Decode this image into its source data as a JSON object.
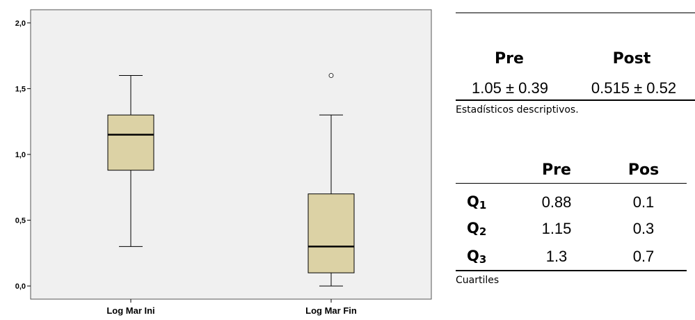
{
  "chart_data": {
    "type": "boxplot",
    "categories": [
      "Log Mar Ini",
      "Log Mar Fin"
    ],
    "boxes": [
      {
        "category": "Log Mar Ini",
        "min": 0.3,
        "q1": 0.88,
        "median": 1.15,
        "q3": 1.3,
        "max": 1.6,
        "outliers": []
      },
      {
        "category": "Log Mar Fin",
        "min": 0.0,
        "q1": 0.1,
        "median": 0.3,
        "q3": 0.7,
        "max": 1.3,
        "outliers": [
          1.6
        ]
      }
    ],
    "yticks": [
      "0,0",
      "0,5",
      "1,0",
      "1,5",
      "2,0"
    ],
    "ytick_values": [
      0.0,
      0.5,
      1.0,
      1.5,
      2.0
    ],
    "ylim": [
      -0.1,
      2.1
    ],
    "box_color": "#DCD2A5",
    "plot_bg": "#F0F0F0"
  },
  "stats_table": {
    "headers": [
      "Pre",
      "Post"
    ],
    "values": [
      "1.05 ± 0.39",
      "0.515 ± 0.52"
    ],
    "caption": "Estadísticos descriptivos."
  },
  "quartiles_table": {
    "headers": [
      "Pre",
      "Pos"
    ],
    "rows": [
      {
        "label": "Q",
        "sub": "1",
        "pre": "0.88",
        "pos": "0.1"
      },
      {
        "label": "Q",
        "sub": "2",
        "pre": "1.15",
        "pos": "0.3"
      },
      {
        "label": "Q",
        "sub": "3",
        "pre": "1.3",
        "pos": "0.7"
      }
    ],
    "caption": "Cuartiles"
  }
}
